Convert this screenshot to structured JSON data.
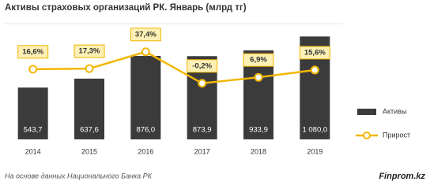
{
  "chart_data": {
    "type": "bar-line",
    "title": "Активы страховых организаций  РК. Январь (млрд тг)",
    "categories": [
      "2014",
      "2015",
      "2016",
      "2017",
      "2018",
      "2019"
    ],
    "series": [
      {
        "name": "Активы",
        "type": "bar",
        "color": "#3b3b3b",
        "values": [
          543.7,
          637.6,
          876.0,
          873.9,
          933.9,
          1080.0
        ],
        "value_labels": [
          "543,7",
          "637,6",
          "876,0",
          "873,9",
          "933,9",
          "1 080,0"
        ]
      },
      {
        "name": "Прирост",
        "type": "line",
        "axis": "y2",
        "color": "#f2b705",
        "values": [
          16.6,
          17.3,
          37.4,
          -0.2,
          6.9,
          15.6
        ],
        "value_labels": [
          "16,6%",
          "17,3%",
          "37,4%",
          "-0,2%",
          "6,9%",
          "15,6%"
        ]
      }
    ],
    "ylim": [
      -25,
      1215
    ],
    "y2lim": [
      -70,
      71
    ],
    "legend": "right",
    "source": "На основе данных  Национального  Банка РК",
    "brand": "Finprom.kz"
  }
}
